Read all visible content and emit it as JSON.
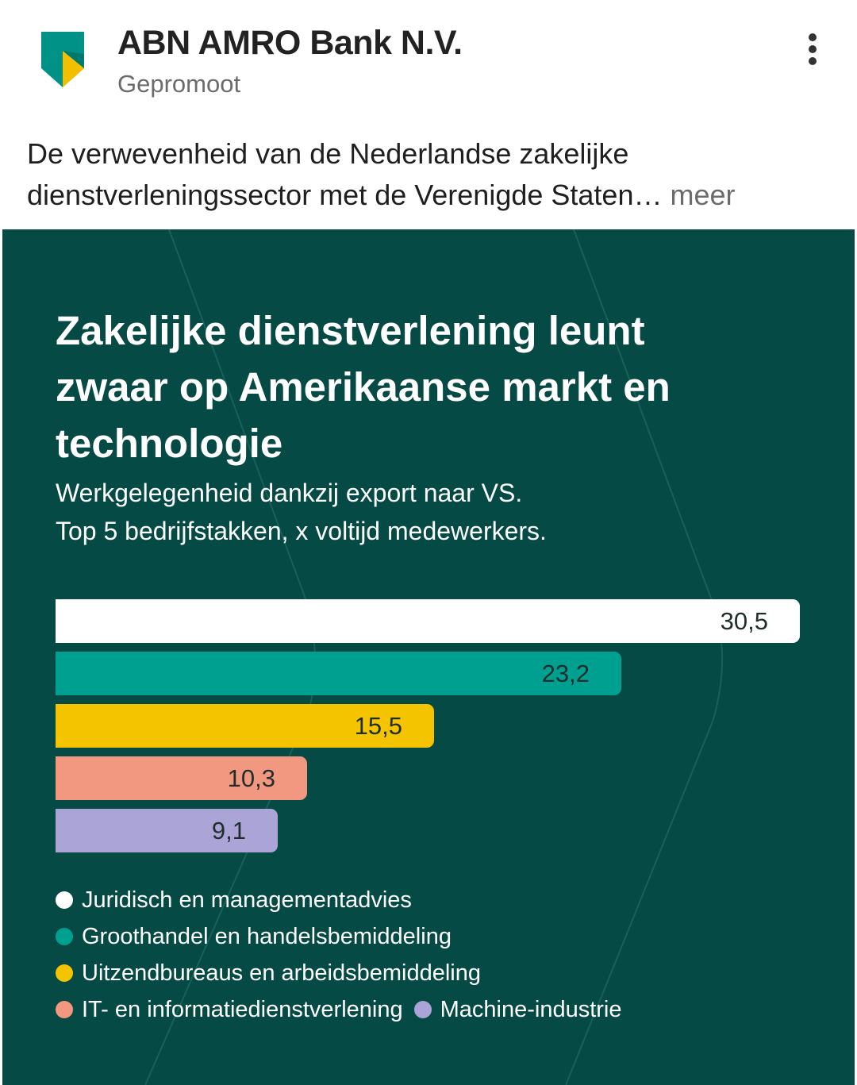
{
  "header": {
    "author": "ABN AMRO Bank N.V.",
    "label": "Gepromoot",
    "logo_icon": "abn-amro-shield-logo",
    "more_icon": "more-vertical-icon"
  },
  "post": {
    "text_line1": "De verwevenheid van de Nederlandse zakelijke",
    "text_line2": "dienstverleningssector met de Verenigde Staten…",
    "more_label": " meer"
  },
  "colors": {
    "background": "#054a45",
    "white": "#ffffff",
    "teal": "#00a091",
    "yellow": "#f5c400",
    "salmon": "#f29880",
    "lavender": "#aaa5d6"
  },
  "chart_data": {
    "type": "bar",
    "orientation": "horizontal",
    "title": "Zakelijke dienstverlening leunt zwaar op Amerikaanse markt en technologie",
    "title_lines": [
      "Zakelijke dienstverlening leunt",
      "zwaar op Amerikaanse markt en",
      "technologie"
    ],
    "subtitle_lines": [
      "Werkgelegenheid dankzij export naar VS.",
      "Top 5 bedrijfstakken, x voltijd medewerkers."
    ],
    "categories": [
      "Juridisch en managementadvies",
      "Groothandel en handelsbemiddeling",
      "Uitzendbureaus en arbeidsbemiddeling",
      "IT- en informatiedienstverlening",
      "Machine-industrie"
    ],
    "values": [
      30.5,
      23.2,
      15.5,
      10.3,
      9.1
    ],
    "value_labels": [
      "30,5",
      "23,2",
      "15,5",
      "10,3",
      "9,1"
    ],
    "bar_colors": [
      "#ffffff",
      "#00a091",
      "#f5c400",
      "#f29880",
      "#aaa5d6"
    ],
    "legend_placement": "bottom",
    "grid": false
  }
}
